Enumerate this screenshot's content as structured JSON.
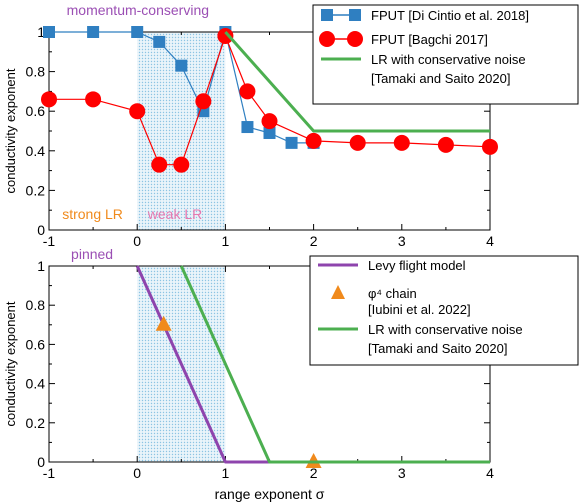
{
  "chart_data": [
    {
      "type": "line",
      "ylabel": "conductivity exponent",
      "xlim": [
        -1,
        4
      ],
      "ylim": [
        0,
        1
      ],
      "xticks": [
        "-1",
        "0",
        "1",
        "2",
        "3",
        "4"
      ],
      "yticks": [
        "0",
        "0.2",
        "0.4",
        "0.6",
        "0.8",
        "1"
      ],
      "shaded_region": [
        0,
        1
      ],
      "annotations": [
        {
          "text": "momentum-conserving",
          "color": "#9b4fb4",
          "x": -0.8,
          "y": 1.02
        },
        {
          "text": "strong LR",
          "color": "#f08a1c",
          "x": -0.85,
          "y": 0.07
        },
        {
          "text": "weak LR",
          "color": "#e879b0",
          "x": 0.12,
          "y": 0.07
        }
      ],
      "legend_position": "top-right",
      "series": [
        {
          "name": "FPUT [Di Cintio et al. 2018]",
          "color": "#2f7fc1",
          "marker": "square",
          "x": [
            -1,
            -0.5,
            0,
            0.25,
            0.5,
            0.75,
            1,
            1.25,
            1.5,
            1.75,
            2
          ],
          "y": [
            1.0,
            1.0,
            1.0,
            0.95,
            0.83,
            0.6,
            1.0,
            0.52,
            0.49,
            0.44,
            0.44
          ]
        },
        {
          "name": "FPUT [Bagchi 2017]",
          "color": "#ff0000",
          "marker": "circle",
          "x": [
            -1,
            -0.5,
            0,
            0.25,
            0.5,
            0.75,
            1,
            1.25,
            1.5,
            2,
            2.5,
            3,
            3.5,
            4
          ],
          "y": [
            0.66,
            0.66,
            0.6,
            0.33,
            0.33,
            0.65,
            0.98,
            0.7,
            0.55,
            0.45,
            0.44,
            0.44,
            0.43,
            0.42
          ]
        },
        {
          "name": "LR with conservative noise\n[Tamaki and Saito 2020]",
          "color": "#4caf50",
          "marker": "none",
          "x": [
            1,
            2,
            4
          ],
          "y": [
            1.0,
            0.5,
            0.5
          ]
        }
      ]
    },
    {
      "type": "line",
      "xlabel": "range exponent σ",
      "ylabel": "conductivity exponent",
      "xlim": [
        -1,
        4
      ],
      "ylim": [
        0,
        1
      ],
      "xticks": [
        "-1",
        "0",
        "1",
        "2",
        "3",
        "4"
      ],
      "yticks": [
        "0",
        "0.2",
        "0.4",
        "0.6",
        "0.8",
        "1"
      ],
      "shaded_region": [
        0,
        1
      ],
      "annotations": [
        {
          "text": "pinned",
          "color": "#9b4fb4",
          "x": -0.75,
          "y": 1.05
        }
      ],
      "legend_position": "top-right",
      "series": [
        {
          "name": "Levy flight model",
          "color": "#8e44ad",
          "marker": "none",
          "x": [
            0,
            1,
            4
          ],
          "y": [
            1.0,
            0.0,
            0.0
          ]
        },
        {
          "name": "φ⁴ chain\n[Iubini et al. 2022]",
          "color": "#f08a1c",
          "marker": "triangle",
          "x": [
            0.3,
            2
          ],
          "y": [
            0.7,
            0.0
          ]
        },
        {
          "name": "LR with conservative noise\n[Tamaki and Saito 2020]",
          "color": "#4caf50",
          "marker": "none",
          "x": [
            0.5,
            1.5,
            4
          ],
          "y": [
            1.0,
            0.0,
            0.0
          ]
        }
      ]
    }
  ]
}
